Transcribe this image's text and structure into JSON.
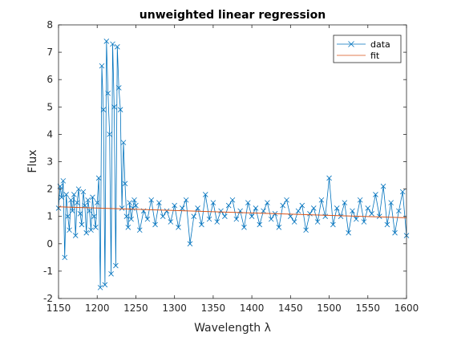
{
  "chart_data": {
    "type": "line",
    "title": "unweighted linear regression",
    "xlabel": "Wavelength λ",
    "ylabel": "Flux",
    "xlim": [
      1150,
      1600
    ],
    "ylim": [
      -2,
      8
    ],
    "xticks": [
      1150,
      1200,
      1250,
      1300,
      1350,
      1400,
      1450,
      1500,
      1550,
      1600
    ],
    "yticks": [
      -2,
      -1,
      0,
      1,
      2,
      3,
      4,
      5,
      6,
      7,
      8
    ],
    "grid": false,
    "legend_position": "top-right",
    "colors": {
      "data": "#0072BD",
      "fit": "#D95319"
    },
    "series": [
      {
        "name": "data",
        "marker": "x",
        "x": [
          1150,
          1152,
          1154,
          1156,
          1158,
          1160,
          1162,
          1164,
          1166,
          1168,
          1170,
          1172,
          1174,
          1176,
          1178,
          1180,
          1182,
          1184,
          1186,
          1188,
          1190,
          1192,
          1194,
          1196,
          1198,
          1200,
          1202,
          1204,
          1206,
          1208,
          1210,
          1212,
          1214,
          1216,
          1218,
          1220,
          1222,
          1224,
          1226,
          1228,
          1230,
          1232,
          1234,
          1236,
          1238,
          1240,
          1242,
          1244,
          1246,
          1248,
          1250,
          1255,
          1260,
          1265,
          1270,
          1275,
          1280,
          1285,
          1290,
          1295,
          1300,
          1305,
          1310,
          1315,
          1320,
          1325,
          1330,
          1335,
          1340,
          1345,
          1350,
          1355,
          1360,
          1365,
          1370,
          1375,
          1380,
          1385,
          1390,
          1395,
          1400,
          1405,
          1410,
          1415,
          1420,
          1425,
          1430,
          1435,
          1440,
          1445,
          1450,
          1455,
          1460,
          1465,
          1470,
          1475,
          1480,
          1485,
          1490,
          1495,
          1500,
          1505,
          1510,
          1515,
          1520,
          1525,
          1530,
          1535,
          1540,
          1545,
          1550,
          1555,
          1560,
          1565,
          1570,
          1575,
          1580,
          1585,
          1590,
          1595,
          1600
        ],
        "y": [
          1.3,
          2.1,
          1.7,
          2.3,
          -0.5,
          1.8,
          1.0,
          0.5,
          1.6,
          1.2,
          1.8,
          0.3,
          1.5,
          2.0,
          1.1,
          0.7,
          1.9,
          1.4,
          0.4,
          1.6,
          1.2,
          0.5,
          1.7,
          1.0,
          0.6,
          1.5,
          2.4,
          -1.6,
          6.5,
          4.9,
          -1.5,
          7.4,
          5.5,
          4.0,
          -1.1,
          7.3,
          5.0,
          -0.8,
          7.2,
          5.7,
          4.9,
          1.3,
          3.7,
          2.2,
          1.0,
          0.6,
          1.5,
          0.9,
          1.3,
          1.6,
          1.4,
          0.5,
          1.2,
          0.9,
          1.6,
          0.7,
          1.5,
          1.0,
          1.2,
          0.8,
          1.4,
          0.6,
          1.3,
          1.6,
          0.0,
          1.0,
          1.3,
          0.7,
          1.8,
          0.9,
          1.5,
          0.8,
          1.2,
          1.0,
          1.4,
          1.6,
          0.9,
          1.2,
          0.6,
          1.5,
          1.0,
          1.3,
          0.7,
          1.2,
          1.5,
          0.9,
          1.1,
          0.6,
          1.4,
          1.6,
          1.0,
          0.8,
          1.2,
          1.4,
          0.5,
          1.1,
          1.3,
          0.8,
          1.6,
          1.0,
          2.4,
          0.7,
          1.3,
          1.0,
          1.5,
          0.4,
          1.2,
          0.9,
          1.6,
          0.8,
          1.3,
          1.1,
          1.8,
          1.0,
          2.1,
          0.7,
          1.5,
          0.4,
          1.2,
          1.9,
          0.3
        ]
      },
      {
        "name": "fit",
        "x": [
          1150,
          1600
        ],
        "y": [
          1.35,
          0.95
        ]
      }
    ]
  }
}
